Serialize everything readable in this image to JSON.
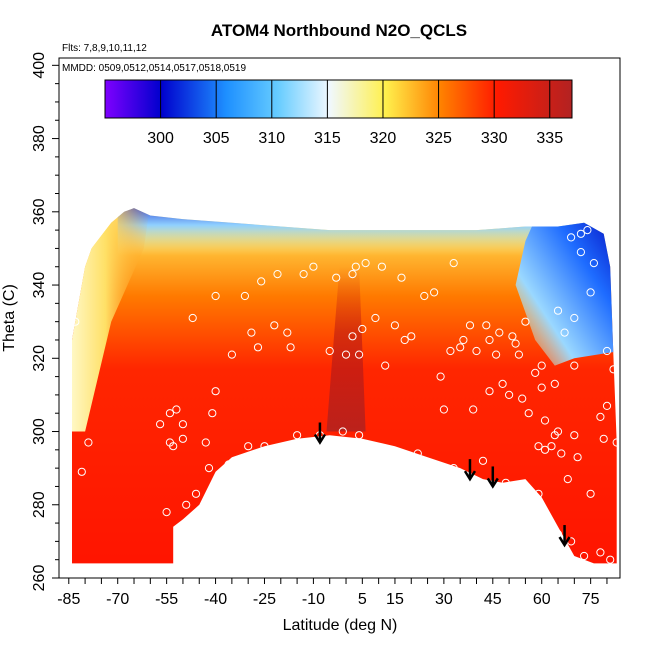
{
  "chart_data": {
    "type": "heatmap",
    "title": "ATOM4 Northbound N2O_QCLS",
    "annotation_lines": [
      "Flts: 7,8,9,10,11,12",
      "MMDD: 0509,0512,0514,0517,0518,0519"
    ],
    "xlabel": "Latitude (deg N)",
    "ylabel": "Theta (C)",
    "xlim": [
      -88,
      84
    ],
    "ylim": [
      260,
      402
    ],
    "x_ticks": [
      -85,
      -70,
      -55,
      -40,
      -25,
      -10,
      5,
      15,
      30,
      45,
      60,
      75
    ],
    "y_ticks": [
      260,
      280,
      300,
      320,
      340,
      360,
      380,
      400
    ],
    "grid": false,
    "colorbar": {
      "position": "top-inside",
      "range": [
        295,
        337
      ],
      "ticks": [
        300,
        305,
        310,
        315,
        320,
        325,
        330,
        335
      ],
      "colors": [
        "#7f00ff",
        "#0000cd",
        "#1e90ff",
        "#66ccff",
        "#f0f8ff",
        "#fff04d",
        "#ff8000",
        "#ff1a00",
        "#b22222"
      ]
    },
    "field_description_values": {
      "surface_max_N2O": 333,
      "upper_tropical_min_N2O": 323,
      "high_latitude_north_upper_N2O": 300,
      "high_latitude_south_upper_N2O": 318
    },
    "measurement_points": [
      [
        -86,
        294
      ],
      [
        -86,
        280
      ],
      [
        -81,
        289
      ],
      [
        -79,
        297
      ],
      [
        -83,
        330
      ],
      [
        -83,
        342
      ],
      [
        -57,
        302
      ],
      [
        -54,
        305
      ],
      [
        -54,
        297
      ],
      [
        -53,
        296
      ],
      [
        -52,
        306
      ],
      [
        -50,
        302
      ],
      [
        -49,
        280
      ],
      [
        -55,
        278
      ],
      [
        -50,
        298
      ],
      [
        -47,
        331
      ],
      [
        -46,
        283
      ],
      [
        -43,
        297
      ],
      [
        -42,
        290
      ],
      [
        -41,
        305
      ],
      [
        -40,
        337
      ],
      [
        -40,
        311
      ],
      [
        -36,
        291
      ],
      [
        -35,
        321
      ],
      [
        -31,
        337
      ],
      [
        -30,
        296
      ],
      [
        -29,
        327
      ],
      [
        -27,
        323
      ],
      [
        -26,
        341
      ],
      [
        -25,
        296
      ],
      [
        -22,
        329
      ],
      [
        -21,
        343
      ],
      [
        -18,
        327
      ],
      [
        -17,
        323
      ],
      [
        -15,
        299
      ],
      [
        -13,
        343
      ],
      [
        -10,
        345
      ],
      [
        -8,
        299
      ],
      [
        -5,
        322
      ],
      [
        -3,
        342
      ],
      [
        -1,
        300
      ],
      [
        0,
        321
      ],
      [
        2,
        343
      ],
      [
        2,
        326
      ],
      [
        3,
        345
      ],
      [
        4,
        321
      ],
      [
        4,
        299
      ],
      [
        5,
        328
      ],
      [
        6,
        346
      ],
      [
        9,
        331
      ],
      [
        11,
        345
      ],
      [
        12,
        318
      ],
      [
        15,
        329
      ],
      [
        15,
        294
      ],
      [
        17,
        342
      ],
      [
        18,
        325
      ],
      [
        20,
        326
      ],
      [
        22,
        294
      ],
      [
        24,
        337
      ],
      [
        27,
        338
      ],
      [
        29,
        315
      ],
      [
        30,
        306
      ],
      [
        32,
        322
      ],
      [
        33,
        346
      ],
      [
        33,
        290
      ],
      [
        35,
        323
      ],
      [
        36,
        325
      ],
      [
        38,
        329
      ],
      [
        39,
        306
      ],
      [
        40,
        322
      ],
      [
        42,
        292
      ],
      [
        43,
        329
      ],
      [
        44,
        325
      ],
      [
        44,
        311
      ],
      [
        46,
        321
      ],
      [
        47,
        327
      ],
      [
        48,
        313
      ],
      [
        49,
        286
      ],
      [
        50,
        310
      ],
      [
        51,
        326
      ],
      [
        52,
        324
      ],
      [
        53,
        321
      ],
      [
        54,
        309
      ],
      [
        55,
        330
      ],
      [
        56,
        305
      ],
      [
        57,
        282
      ],
      [
        58,
        316
      ],
      [
        59,
        296
      ],
      [
        59,
        283
      ],
      [
        60,
        312
      ],
      [
        60,
        318
      ],
      [
        61,
        295
      ],
      [
        61,
        303
      ],
      [
        62,
        275
      ],
      [
        63,
        296
      ],
      [
        64,
        299
      ],
      [
        64,
        313
      ],
      [
        65,
        272
      ],
      [
        65,
        333
      ],
      [
        65,
        300
      ],
      [
        66,
        294
      ],
      [
        67,
        327
      ],
      [
        68,
        287
      ],
      [
        69,
        270
      ],
      [
        69,
        353
      ],
      [
        70,
        331
      ],
      [
        70,
        318
      ],
      [
        70,
        299
      ],
      [
        71,
        293
      ],
      [
        72,
        354
      ],
      [
        72,
        349
      ],
      [
        73,
        266
      ],
      [
        74,
        355
      ],
      [
        75,
        338
      ],
      [
        75,
        283
      ],
      [
        76,
        346
      ],
      [
        78,
        267
      ],
      [
        78,
        304
      ],
      [
        79,
        298
      ],
      [
        80,
        322
      ],
      [
        80,
        307
      ],
      [
        81,
        265
      ],
      [
        82,
        317
      ],
      [
        83,
        297
      ]
    ],
    "arrows": [
      {
        "x": -8,
        "theta": 297
      },
      {
        "x": 38,
        "theta": 287
      },
      {
        "x": 45,
        "theta": 285
      },
      {
        "x": 67,
        "theta": 269
      }
    ]
  }
}
